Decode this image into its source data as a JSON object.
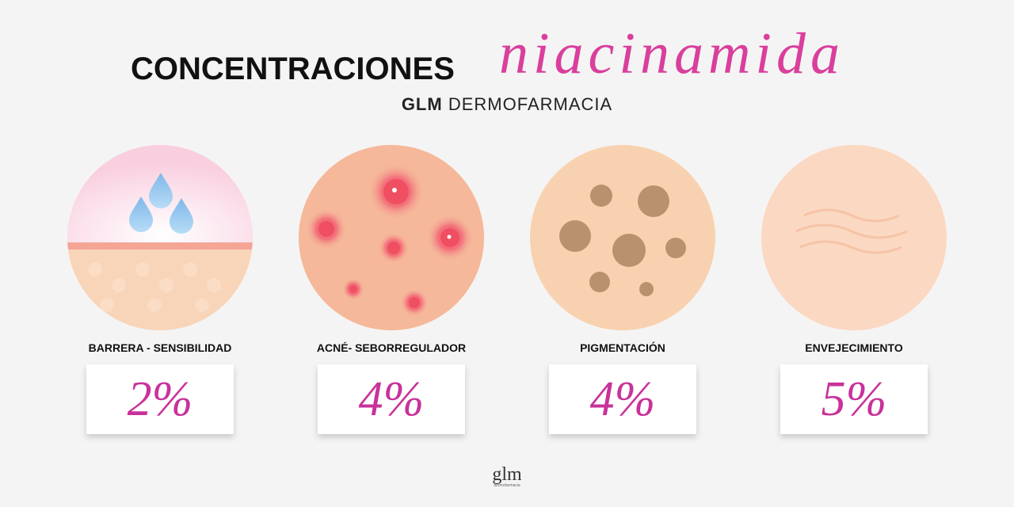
{
  "header": {
    "title": "CONCENTRACIONES",
    "script": "niacinamida",
    "brand": "GLM",
    "subtitle": "DERMOFARMACIA"
  },
  "items": [
    {
      "label": "BARRERA - SENSIBILIDAD",
      "value": "2%"
    },
    {
      "label": "ACNÉ- SEBORREGULADOR",
      "value": "4%"
    },
    {
      "label": "PIGMENTACIÓN",
      "value": "4%"
    },
    {
      "label": "ENVEJECIMIENTO",
      "value": "5%"
    }
  ],
  "footer": {
    "logo": "glm",
    "tagline": "dermofarmacia"
  }
}
